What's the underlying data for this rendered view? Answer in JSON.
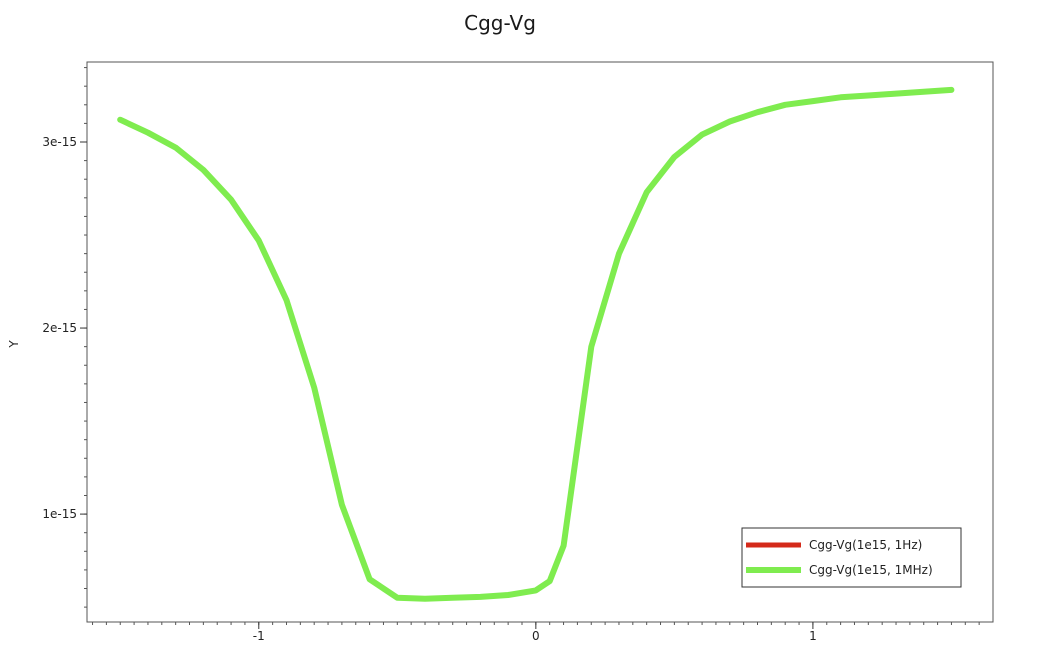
{
  "chart_data": {
    "type": "line",
    "title": "Cgg-Vg",
    "xlabel": "",
    "ylabel": "Y",
    "xlim": [
      -1.62,
      1.65
    ],
    "ylim": [
      4.2e-16,
      3.43e-15
    ],
    "x_ticks": [
      {
        "value": -1,
        "label": "-1"
      },
      {
        "value": 0,
        "label": "0"
      },
      {
        "value": 1,
        "label": "1"
      }
    ],
    "y_ticks": [
      {
        "value": 1e-15,
        "label": "1e-15"
      },
      {
        "value": 2e-15,
        "label": "2e-15"
      },
      {
        "value": 3e-15,
        "label": "3e-15"
      }
    ],
    "grid": false,
    "legend_position": "bottom-right",
    "series": [
      {
        "name": "Cgg-Vg(1e15, 1Hz)",
        "color": "#d42a1a",
        "x": [
          -1.5,
          -1.4,
          -1.3,
          -1.2,
          -1.1,
          -1.0,
          -0.9,
          -0.8,
          -0.7,
          -0.6,
          -0.5,
          -0.4,
          -0.3,
          -0.2,
          -0.1,
          0.0,
          0.05,
          0.1,
          0.2,
          0.3,
          0.4,
          0.5,
          0.6,
          0.7,
          0.8,
          0.9,
          1.0,
          1.1,
          1.2,
          1.3,
          1.4,
          1.5
        ],
        "y": [
          3.12e-15,
          3.05e-15,
          2.97e-15,
          2.85e-15,
          2.69e-15,
          2.47e-15,
          2.15e-15,
          1.68e-15,
          1.05e-15,
          6.5e-16,
          5.5e-16,
          5.45e-16,
          5.5e-16,
          5.55e-16,
          5.65e-16,
          5.9e-16,
          6.4e-16,
          8.3e-16,
          1.9e-15,
          2.4e-15,
          2.73e-15,
          2.92e-15,
          3.04e-15,
          3.11e-15,
          3.16e-15,
          3.2e-15,
          3.22e-15,
          3.24e-15,
          3.25e-15,
          3.26e-15,
          3.27e-15,
          3.28e-15
        ]
      },
      {
        "name": "Cgg-Vg(1e15, 1MHz)",
        "color": "#7fec4f",
        "x": [
          -1.5,
          -1.4,
          -1.3,
          -1.2,
          -1.1,
          -1.0,
          -0.9,
          -0.8,
          -0.7,
          -0.6,
          -0.5,
          -0.4,
          -0.3,
          -0.2,
          -0.1,
          0.0,
          0.05,
          0.1,
          0.2,
          0.3,
          0.4,
          0.5,
          0.6,
          0.7,
          0.8,
          0.9,
          1.0,
          1.1,
          1.2,
          1.3,
          1.4,
          1.5
        ],
        "y": [
          3.12e-15,
          3.05e-15,
          2.97e-15,
          2.85e-15,
          2.69e-15,
          2.47e-15,
          2.15e-15,
          1.68e-15,
          1.05e-15,
          6.5e-16,
          5.5e-16,
          5.45e-16,
          5.5e-16,
          5.55e-16,
          5.65e-16,
          5.9e-16,
          6.4e-16,
          8.3e-16,
          1.9e-15,
          2.4e-15,
          2.73e-15,
          2.92e-15,
          3.04e-15,
          3.11e-15,
          3.16e-15,
          3.2e-15,
          3.22e-15,
          3.24e-15,
          3.25e-15,
          3.26e-15,
          3.27e-15,
          3.28e-15
        ]
      }
    ]
  }
}
